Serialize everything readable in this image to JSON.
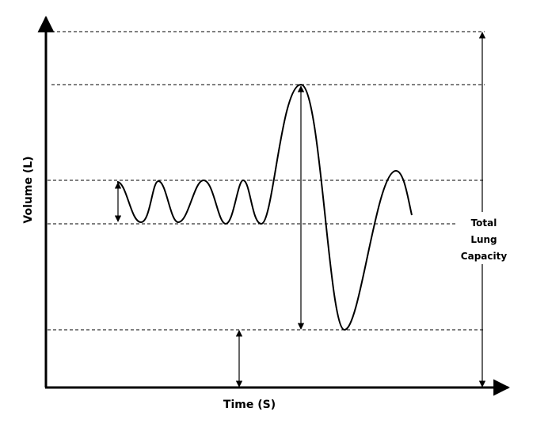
{
  "axes": {
    "y_label": "Volume (L)",
    "x_label": "Time (S)"
  },
  "annotation": {
    "lines": [
      "Total",
      "Lung",
      "Capacity"
    ]
  }
}
